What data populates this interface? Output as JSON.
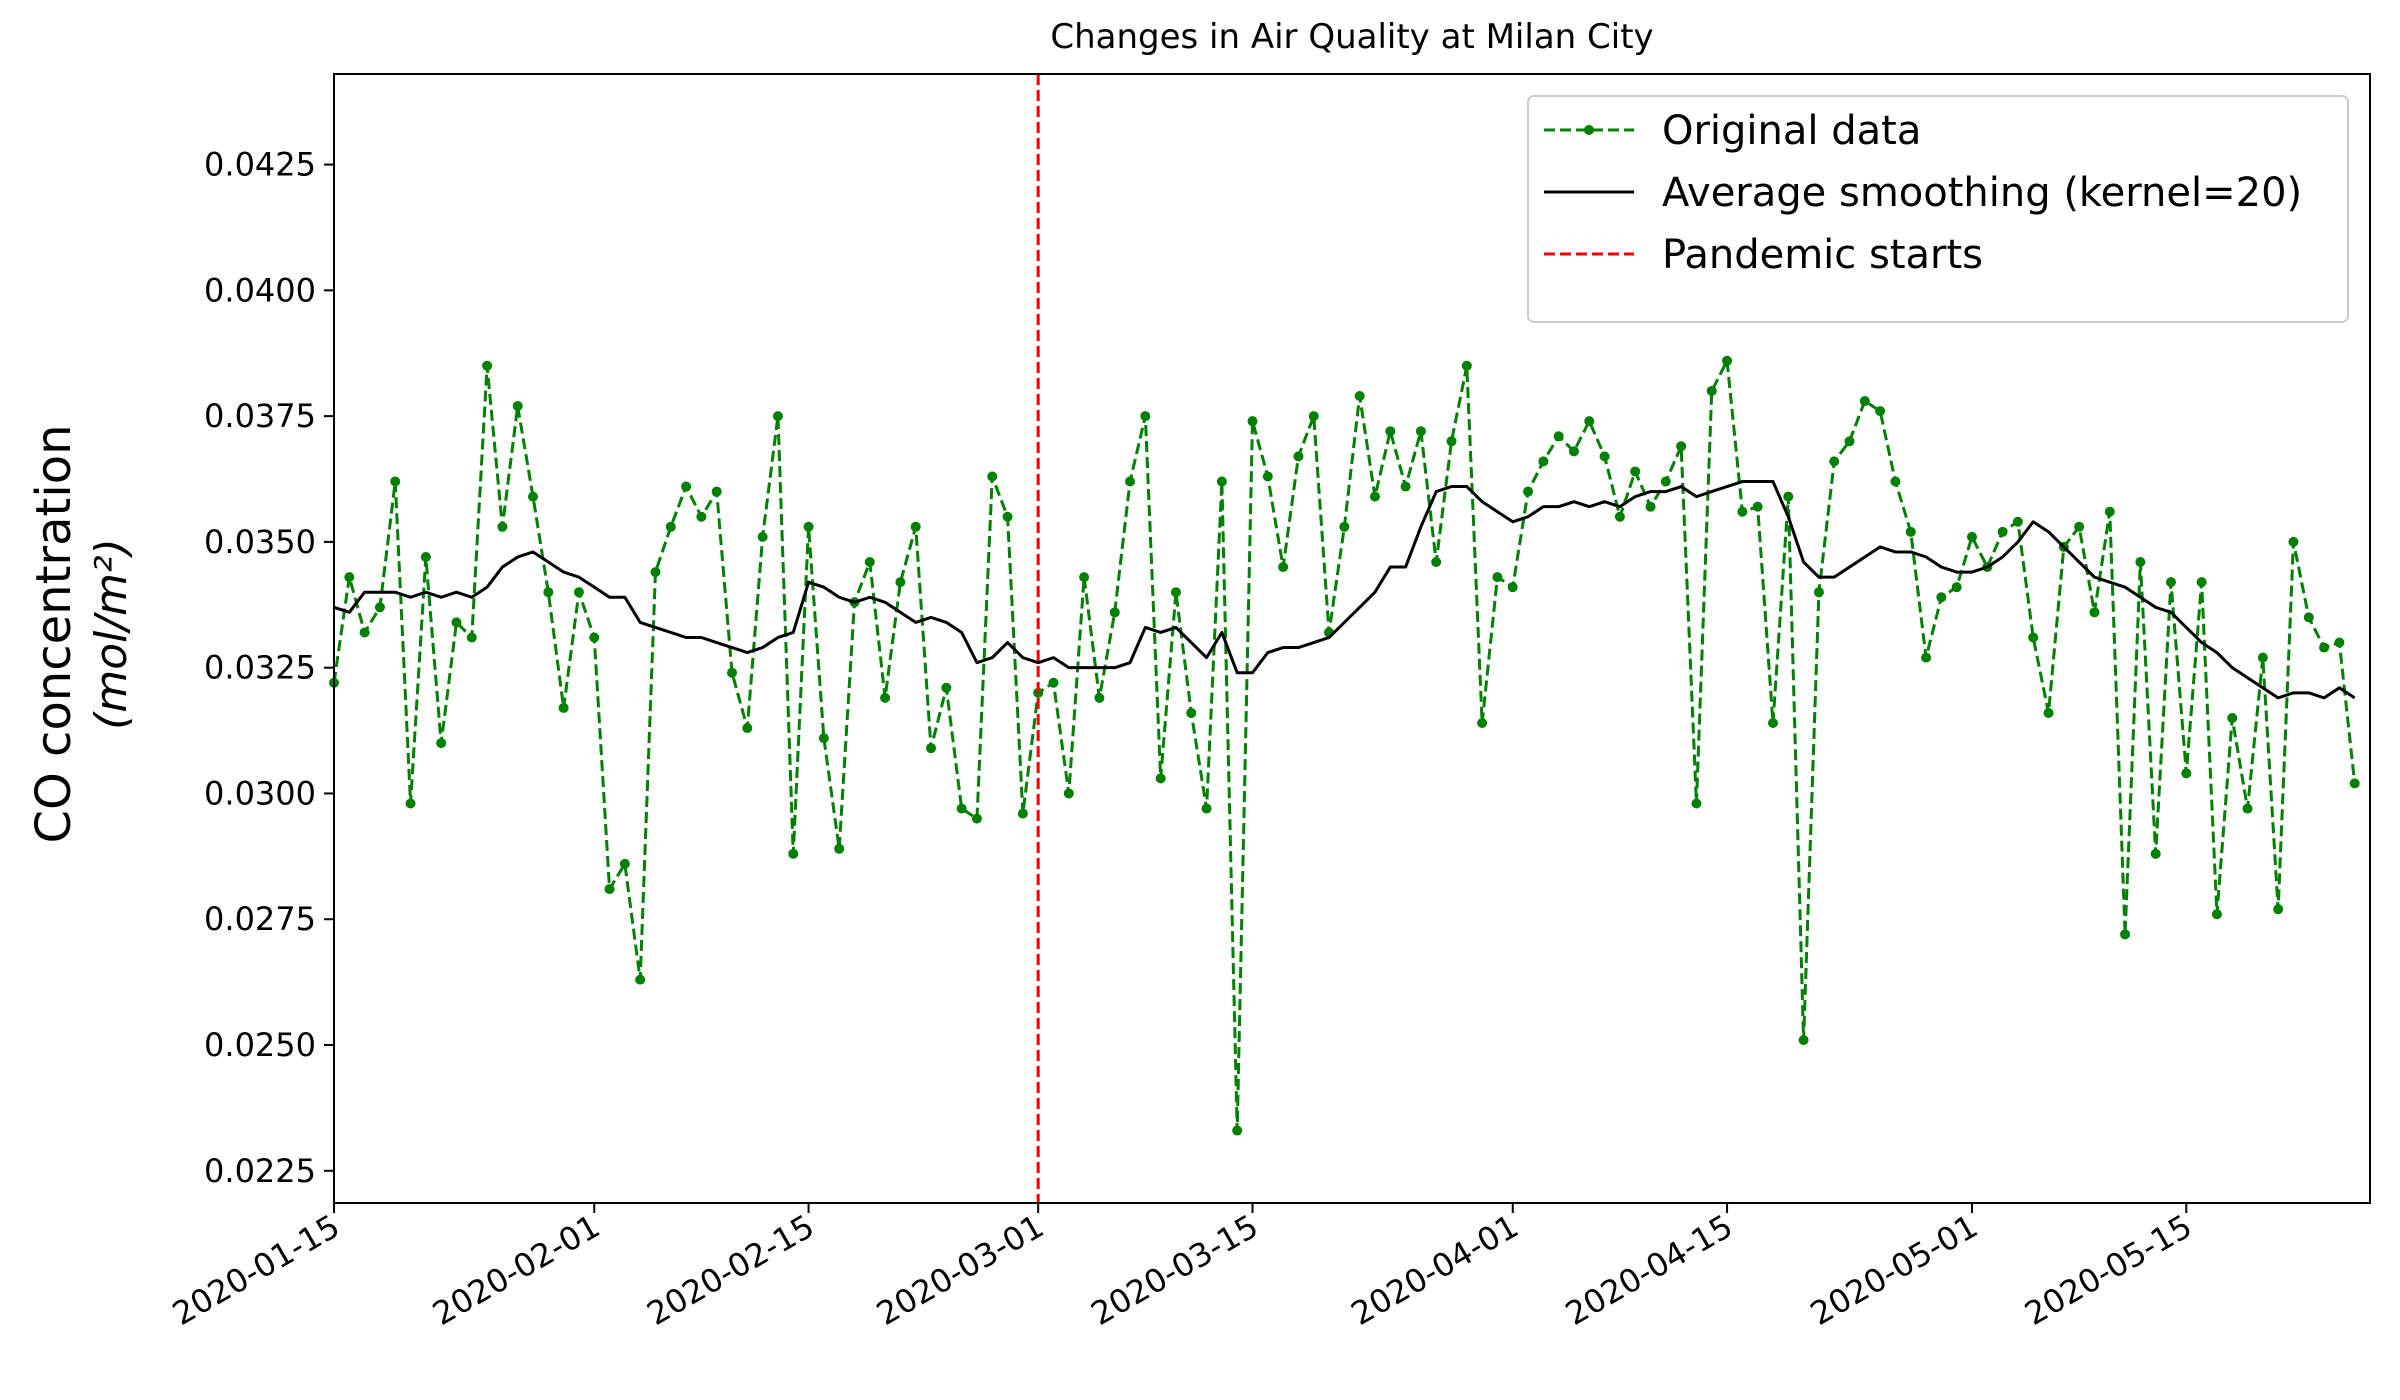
{
  "chart_data": {
    "type": "line",
    "title": "Changes in Air Quality at Milan City",
    "ylabel": "CO concentration",
    "ylabel_unit": "(mol/m²)",
    "x": [
      "2020-01-15",
      "2020-01-16",
      "2020-01-17",
      "2020-01-18",
      "2020-01-19",
      "2020-01-20",
      "2020-01-21",
      "2020-01-22",
      "2020-01-23",
      "2020-01-24",
      "2020-01-25",
      "2020-01-26",
      "2020-01-27",
      "2020-01-28",
      "2020-01-29",
      "2020-01-30",
      "2020-01-31",
      "2020-02-01",
      "2020-02-02",
      "2020-02-03",
      "2020-02-04",
      "2020-02-05",
      "2020-02-06",
      "2020-02-07",
      "2020-02-08",
      "2020-02-09",
      "2020-02-10",
      "2020-02-11",
      "2020-02-12",
      "2020-02-13",
      "2020-02-14",
      "2020-02-15",
      "2020-02-16",
      "2020-02-17",
      "2020-02-18",
      "2020-02-19",
      "2020-02-20",
      "2020-02-21",
      "2020-02-22",
      "2020-02-23",
      "2020-02-24",
      "2020-02-25",
      "2020-02-26",
      "2020-02-27",
      "2020-02-28",
      "2020-02-29",
      "2020-03-01",
      "2020-03-02",
      "2020-03-03",
      "2020-03-04",
      "2020-03-05",
      "2020-03-06",
      "2020-03-07",
      "2020-03-08",
      "2020-03-09",
      "2020-03-10",
      "2020-03-11",
      "2020-03-12",
      "2020-03-13",
      "2020-03-14",
      "2020-03-15",
      "2020-03-16",
      "2020-03-17",
      "2020-03-18",
      "2020-03-19",
      "2020-03-20",
      "2020-03-21",
      "2020-03-22",
      "2020-03-23",
      "2020-03-24",
      "2020-03-25",
      "2020-03-26",
      "2020-03-27",
      "2020-03-28",
      "2020-03-29",
      "2020-03-30",
      "2020-03-31",
      "2020-04-01",
      "2020-04-02",
      "2020-04-03",
      "2020-04-04",
      "2020-04-05",
      "2020-04-06",
      "2020-04-07",
      "2020-04-08",
      "2020-04-09",
      "2020-04-10",
      "2020-04-11",
      "2020-04-12",
      "2020-04-13",
      "2020-04-14",
      "2020-04-15",
      "2020-04-16",
      "2020-04-17",
      "2020-04-18",
      "2020-04-19",
      "2020-04-20",
      "2020-04-21",
      "2020-04-22",
      "2020-04-23",
      "2020-04-24",
      "2020-04-25",
      "2020-04-26",
      "2020-04-27",
      "2020-04-28",
      "2020-04-29",
      "2020-04-30",
      "2020-05-01",
      "2020-05-02",
      "2020-05-03",
      "2020-05-04",
      "2020-05-05",
      "2020-05-06",
      "2020-05-07",
      "2020-05-08",
      "2020-05-09",
      "2020-05-10",
      "2020-05-11",
      "2020-05-12",
      "2020-05-13",
      "2020-05-14",
      "2020-05-15",
      "2020-05-16",
      "2020-05-17",
      "2020-05-18",
      "2020-05-19",
      "2020-05-20",
      "2020-05-21",
      "2020-05-22",
      "2020-05-23",
      "2020-05-24",
      "2020-05-25",
      "2020-05-26"
    ],
    "series": [
      {
        "name": "Original data",
        "color": "#008000",
        "dashed": true,
        "markers": true,
        "values": [
          0.0322,
          0.0343,
          0.0332,
          0.0337,
          0.0362,
          0.0298,
          0.0347,
          0.031,
          0.0334,
          0.0331,
          0.0385,
          0.0353,
          0.0377,
          0.0359,
          0.034,
          0.0317,
          0.034,
          0.0331,
          0.0281,
          0.0286,
          0.0263,
          0.0344,
          0.0353,
          0.0361,
          0.0355,
          0.036,
          0.0324,
          0.0313,
          0.0351,
          0.0375,
          0.0288,
          0.0353,
          0.0311,
          0.0289,
          0.0338,
          0.0346,
          0.0319,
          0.0342,
          0.0353,
          0.0309,
          0.0321,
          0.0297,
          0.0295,
          0.0363,
          0.0355,
          0.0296,
          0.032,
          0.0322,
          0.03,
          0.0343,
          0.0319,
          0.0336,
          0.0362,
          0.0375,
          0.0303,
          0.034,
          0.0316,
          0.0297,
          0.0362,
          0.0233,
          0.0374,
          0.0363,
          0.0345,
          0.0367,
          0.0375,
          0.0332,
          0.0353,
          0.0379,
          0.0359,
          0.0372,
          0.0361,
          0.0372,
          0.0346,
          0.037,
          0.0385,
          0.0314,
          0.0343,
          0.0341,
          0.036,
          0.0366,
          0.0371,
          0.0368,
          0.0374,
          0.0367,
          0.0355,
          0.0364,
          0.0357,
          0.0362,
          0.0369,
          0.0298,
          0.038,
          0.0386,
          0.0356,
          0.0357,
          0.0314,
          0.0359,
          0.0251,
          0.034,
          0.0366,
          0.037,
          0.0378,
          0.0376,
          0.0362,
          0.0352,
          0.0327,
          0.0339,
          0.0341,
          0.0351,
          0.0345,
          0.0352,
          0.0354,
          0.0331,
          0.0316,
          0.0349,
          0.0353,
          0.0336,
          0.0356,
          0.0272,
          0.0346,
          0.0288,
          0.0342,
          0.0304,
          0.0342,
          0.0276,
          0.0315,
          0.0297,
          0.0327,
          0.0277,
          0.035,
          0.0335,
          0.0329,
          0.033,
          0.0302
        ]
      },
      {
        "name": "Average smoothing (kernel=20)",
        "color": "#000000",
        "dashed": false,
        "markers": false,
        "values": [
          0.0337,
          0.0336,
          0.034,
          0.034,
          0.034,
          0.0339,
          0.034,
          0.0339,
          0.034,
          0.0339,
          0.0341,
          0.0345,
          0.0347,
          0.0348,
          0.0346,
          0.0344,
          0.0343,
          0.0341,
          0.0339,
          0.0339,
          0.0334,
          0.0333,
          0.0332,
          0.0331,
          0.0331,
          0.033,
          0.0329,
          0.0328,
          0.0329,
          0.0331,
          0.0332,
          0.0342,
          0.0341,
          0.0339,
          0.0338,
          0.0339,
          0.0338,
          0.0336,
          0.0334,
          0.0335,
          0.0334,
          0.0332,
          0.0326,
          0.0327,
          0.033,
          0.0327,
          0.0326,
          0.0327,
          0.0325,
          0.0325,
          0.0325,
          0.0325,
          0.0326,
          0.0333,
          0.0332,
          0.0333,
          0.033,
          0.0327,
          0.0332,
          0.0324,
          0.0324,
          0.0328,
          0.0329,
          0.0329,
          0.033,
          0.0331,
          0.0334,
          0.0337,
          0.034,
          0.0345,
          0.0345,
          0.0353,
          0.036,
          0.0361,
          0.0361,
          0.0358,
          0.0356,
          0.0354,
          0.0355,
          0.0357,
          0.0357,
          0.0358,
          0.0357,
          0.0358,
          0.0357,
          0.0359,
          0.036,
          0.036,
          0.0361,
          0.0359,
          0.036,
          0.0361,
          0.0362,
          0.0362,
          0.0362,
          0.0355,
          0.0346,
          0.0343,
          0.0343,
          0.0345,
          0.0347,
          0.0349,
          0.0348,
          0.0348,
          0.0347,
          0.0345,
          0.0344,
          0.0344,
          0.0345,
          0.0347,
          0.035,
          0.0354,
          0.0352,
          0.0349,
          0.0346,
          0.0343,
          0.0342,
          0.0341,
          0.0339,
          0.0337,
          0.0336,
          0.0333,
          0.033,
          0.0328,
          0.0325,
          0.0323,
          0.0321,
          0.0319,
          0.032,
          0.032,
          0.0319,
          0.0321,
          0.0319
        ]
      }
    ],
    "vlines": [
      {
        "name": "Pandemic starts",
        "x": "2020-03-01",
        "color": "#ff0000"
      }
    ],
    "xlim": [
      "2020-01-15",
      "2020-05-27"
    ],
    "xticks": [
      "2020-01-15",
      "2020-02-01",
      "2020-02-15",
      "2020-03-01",
      "2020-03-15",
      "2020-04-01",
      "2020-04-15",
      "2020-05-01",
      "2020-05-15"
    ],
    "ylim": [
      0.02186,
      0.0443
    ],
    "yticks": [
      0.0225,
      {
        "value": 0.025,
        "label": "0.0250"
      },
      0.0275,
      {
        "value": 0.03,
        "label": "0.0300"
      },
      0.0325,
      {
        "value": 0.035,
        "label": "0.0350"
      },
      0.0375,
      {
        "value": 0.04,
        "label": "0.0400"
      },
      0.0425
    ],
    "legend": "upper right",
    "grid": false
  }
}
